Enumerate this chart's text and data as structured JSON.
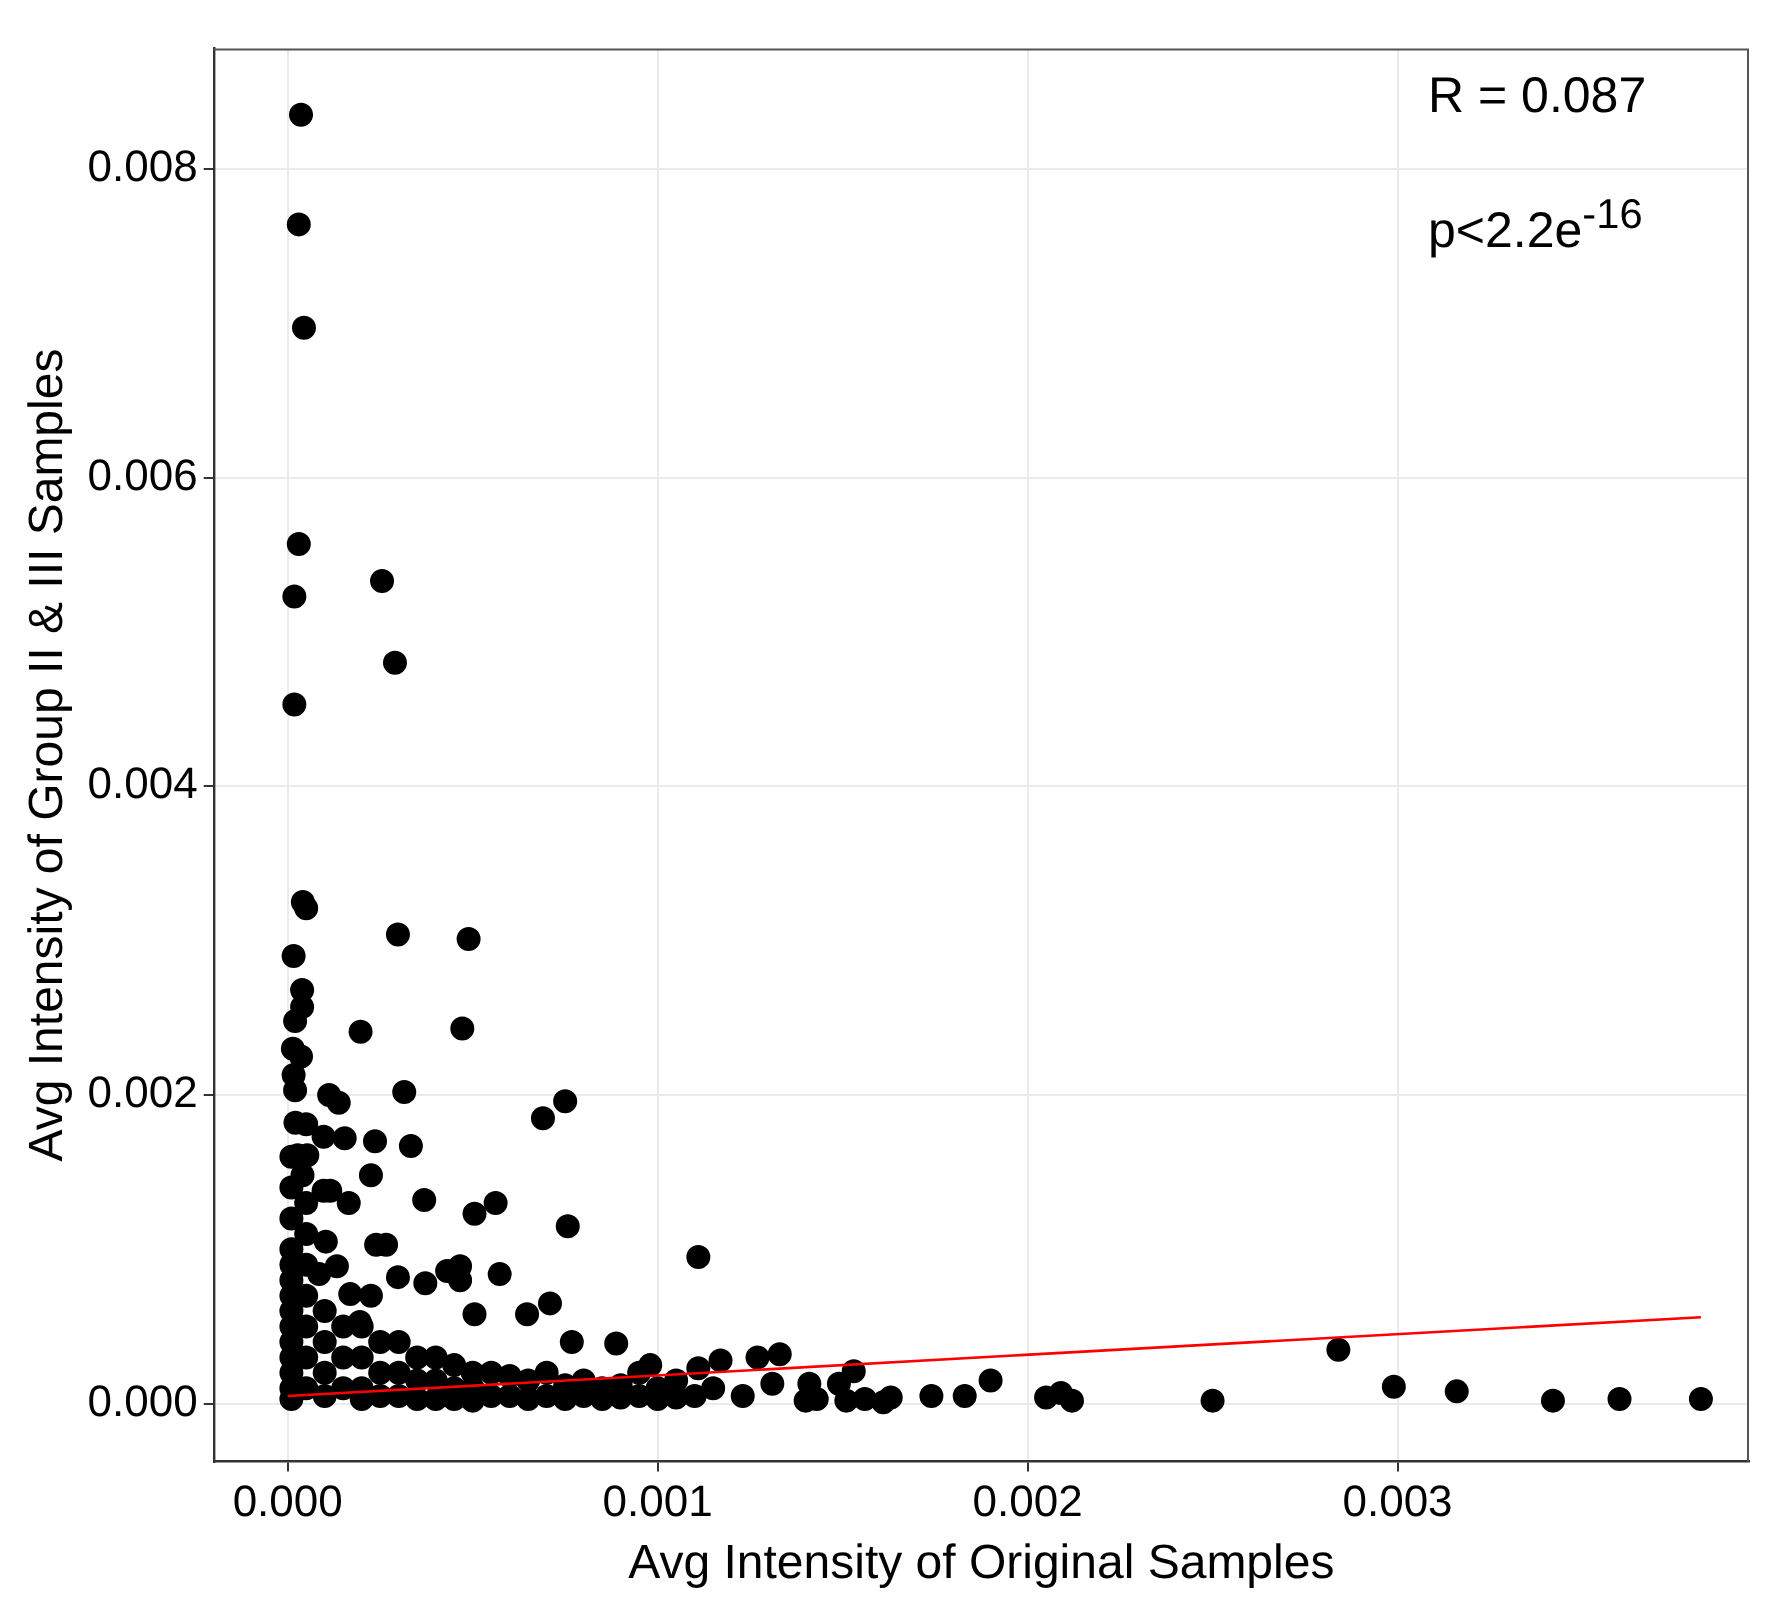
{
  "chart_data": {
    "type": "scatter",
    "xlabel": "Avg Intensity of Original Samples",
    "ylabel": "Avg Intensity of Group II & III Samples",
    "annotations": [
      "R = 0.087",
      "p<2.2e$^{-16}$"
    ],
    "xlim": [
      -0.0002,
      0.00395
    ],
    "ylim": [
      -0.000375,
      0.00878
    ],
    "xticks": [
      {
        "value": 0,
        "label": "0.000"
      },
      {
        "value": 0.001,
        "label": "0.001"
      },
      {
        "value": 0.002,
        "label": "0.002"
      },
      {
        "value": 0.003,
        "label": "0.003"
      }
    ],
    "yticks": [
      {
        "value": 0,
        "label": "0.000"
      },
      {
        "value": 0.002,
        "label": "0.002"
      },
      {
        "value": 0.004,
        "label": "0.004"
      },
      {
        "value": 0.006,
        "label": "0.006"
      },
      {
        "value": 0.008,
        "label": "0.008"
      }
    ],
    "grid": true,
    "series": [
      {
        "color": "#000000",
        "marker": "circle",
        "x": [
          3.6e-05,
          3e-05,
          4.4e-05,
          3e-05,
          0.000255,
          1.8e-05,
          0.00029,
          1.8e-05,
          4.1e-05,
          5e-05,
          0.000298,
          0.000489,
          1.6e-05,
          3.9e-05,
          3.9e-05,
          2e-05,
          0.000197,
          0.000472,
          1.4e-05,
          3.6e-05,
          1.6e-05,
          2e-05,
          0.000112,
          0.000138,
          0.000315,
          0.00075,
          0.00069,
          2.1e-05,
          5e-05,
          9.7e-05,
          0.000154,
          0.000236,
          0.000333,
          2.7e-05,
          5.3e-05,
          0.000225,
          4e-05,
          9.7e-05,
          0.000115,
          0.000165,
          0.000369,
          0.000505,
          0.000562,
          0.000757,
          0.000239,
          0.000266,
          0.000103,
          0.00111,
          0.000133,
          0.000431,
          0.000466,
          0.000466,
          0.000573,
          0.000298,
          0.000372,
          8.5e-05,
          0.000169,
          0.000225,
          0.000709,
          0.000647,
          0.000505,
          0.000195,
          0.000768,
          0.000888,
          0.00133,
          0.00127,
          0.00117,
          0.00111,
          0.00098,
          0.00141,
          0.00149,
          0.00131,
          0.00123,
          0.0014,
          0.00143,
          0.00153,
          0.00151,
          0.00156,
          0.00161,
          0.00163,
          0.00174,
          0.00183,
          0.0019,
          0.00205,
          0.00209,
          0.00212,
          0.0025,
          0.00284,
          0.00299,
          0.00316,
          0.00342,
          0.0036,
          0.00382,
          1e-05,
          1e-05,
          1e-05,
          1e-05,
          1e-05,
          1e-05,
          1e-05,
          1e-05,
          1e-05,
          1e-05,
          1e-05,
          1e-05,
          1e-05,
          1e-05,
          5e-05,
          5e-05,
          5e-05,
          5e-05,
          5e-05,
          5e-05,
          5e-05,
          0.0001,
          0.0001,
          0.0001,
          0.0001,
          0.00015,
          0.00015,
          0.00015,
          0.0002,
          0.0002,
          0.0002,
          0.0002,
          0.00025,
          0.00025,
          0.00025,
          0.0003,
          0.0003,
          0.0003,
          0.00035,
          0.00035,
          0.00035,
          0.0004,
          0.0004,
          0.0004,
          0.00045,
          0.00045,
          0.00045,
          0.0005,
          0.0005,
          0.0005,
          0.00055,
          0.00055,
          0.0006,
          0.0006,
          0.00065,
          0.00065,
          0.0007,
          0.0007,
          0.00075,
          0.00075,
          0.0008,
          0.0008,
          0.00085,
          0.00085,
          0.0009,
          0.0009,
          0.00095,
          0.00095,
          0.001,
          0.001,
          0.00105,
          0.00105,
          0.0011,
          0.00115
        ],
        "values": [
          0.00835,
          0.00764,
          0.00697,
          0.00557,
          0.00533,
          0.00523,
          0.0048,
          0.00453,
          0.00325,
          0.00321,
          0.00304,
          0.00301,
          0.0029,
          0.00268,
          0.00257,
          0.00248,
          0.00241,
          0.00243,
          0.0023,
          0.00225,
          0.00213,
          0.00203,
          0.002,
          0.00195,
          0.00202,
          0.00196,
          0.00185,
          0.00182,
          0.00181,
          0.00173,
          0.00172,
          0.0017,
          0.00167,
          0.00161,
          0.00161,
          0.00148,
          0.00148,
          0.00138,
          0.00138,
          0.0013,
          0.00132,
          0.00123,
          0.0013,
          0.00115,
          0.00103,
          0.00103,
          0.00105,
          0.00095,
          0.00089,
          0.00086,
          0.00089,
          0.0008,
          0.00084,
          0.00082,
          0.00078,
          0.00084,
          0.00071,
          0.0007,
          0.00065,
          0.00058,
          0.00058,
          0.00053,
          0.0004,
          0.00039,
          0.00032,
          0.0003,
          0.00028,
          0.00023,
          0.00025,
          0.00013,
          0.00013,
          0.00013,
          5e-05,
          2e-05,
          3e-05,
          0.00021,
          2e-05,
          3e-05,
          1e-05,
          4e-05,
          5e-05,
          5e-05,
          0.00015,
          4e-05,
          7e-05,
          2e-05,
          2e-05,
          0.00035,
          0.00011,
          8e-05,
          2e-05,
          3e-05,
          3e-05,
          0.0016,
          0.0014,
          0.0012,
          0.001,
          0.0009,
          0.0008,
          0.0007,
          0.0006,
          0.0005,
          0.0004,
          0.0003,
          0.0002,
          0.0001,
          3e-05,
          0.0013,
          0.0011,
          0.0009,
          0.0007,
          0.0005,
          0.0003,
          0.0001,
          0.0006,
          0.0004,
          0.0002,
          5e-05,
          0.0005,
          0.0003,
          0.0001,
          0.0005,
          0.0003,
          0.0001,
          3e-05,
          0.0004,
          0.0002,
          5e-05,
          0.0004,
          0.0002,
          5e-05,
          0.0003,
          0.00015,
          3e-05,
          0.0003,
          0.00015,
          3e-05,
          0.00025,
          0.0001,
          3e-05,
          0.0002,
          0.0001,
          2e-05,
          0.0002,
          5e-05,
          0.00018,
          5e-05,
          0.00015,
          3e-05,
          0.0002,
          5e-05,
          0.00012,
          3e-05,
          0.00015,
          5e-05,
          0.0001,
          3e-05,
          0.00012,
          4e-05,
          0.0002,
          5e-05,
          0.0001,
          3e-05,
          0.00015,
          4e-05,
          5e-05,
          0.0001
        ]
      },
      {
        "type": "line",
        "color": "#ff0000",
        "x": [
          0,
          0.00382
        ],
        "values": [
          5e-05,
          0.00056
        ]
      }
    ]
  }
}
